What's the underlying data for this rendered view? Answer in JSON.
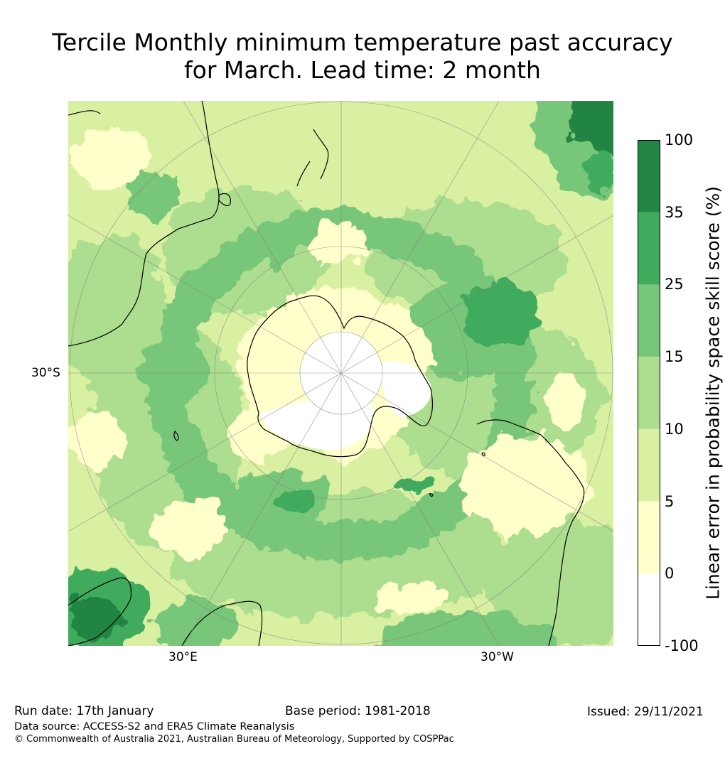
{
  "title": {
    "line1": "Tercile Monthly minimum temperature past accuracy",
    "line2": "for March. Lead time: 2 month"
  },
  "map": {
    "projection": "south-polar stereographic",
    "lon_labels": [
      "30°E",
      "30°W"
    ],
    "lat_label": "30°S"
  },
  "colorbar": {
    "label": "Linear error in probability space skill score (%)",
    "ticks": [
      "100",
      "35",
      "25",
      "15",
      "10",
      "5",
      "0",
      "-100"
    ],
    "bins": [
      {
        "range": "35–100",
        "color": "#238443"
      },
      {
        "range": "25–35",
        "color": "#41ab5d"
      },
      {
        "range": "15–25",
        "color": "#78c679"
      },
      {
        "range": "10–15",
        "color": "#addd8e"
      },
      {
        "range": "5–10",
        "color": "#d9f0a3"
      },
      {
        "range": "0–5",
        "color": "#ffffcc"
      },
      {
        "range": "-100–0",
        "color": "#ffffff"
      }
    ]
  },
  "footer": {
    "run_date": "Run date: 17th January",
    "base_period": "Base period: 1981-2018",
    "issued": "Issued: 29/11/2021",
    "data_source": "Data source: ACCESS-S2 and ERA5 Climate Reanalysis",
    "copyright": "© Commonwealth of Australia 2021, Australian Bureau of Meteorology, Supported by COSPPac"
  }
}
